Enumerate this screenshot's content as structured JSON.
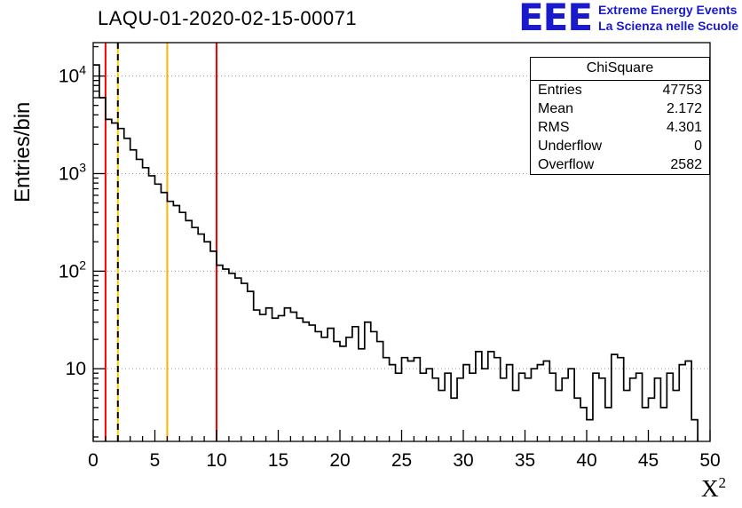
{
  "page": {
    "title": "LAQU-01-2020-02-15-00071"
  },
  "logo": {
    "mark": "EEE",
    "line1": "Extreme Energy Events",
    "line2": "La Scienza nelle Scuole",
    "color": "#1a1acd"
  },
  "axes": {
    "ylabel": "Entries/bin",
    "xlabel_base": "X",
    "xlabel_exp": "2"
  },
  "stats": {
    "title": "ChiSquare",
    "rows": [
      {
        "label": "Entries",
        "value": "47753"
      },
      {
        "label": "Mean",
        "value": "2.172"
      },
      {
        "label": "RMS",
        "value": "4.301"
      },
      {
        "label": "Underflow",
        "value": "0"
      },
      {
        "label": "Overflow",
        "value": "2582"
      }
    ]
  },
  "chart_data": {
    "type": "line",
    "style": "step-histogram",
    "title": "LAQU-01-2020-02-15-00071",
    "xlabel": "X^2",
    "ylabel": "Entries/bin",
    "xlim": [
      0,
      50
    ],
    "ylim": [
      1.8,
      22000
    ],
    "yscale": "log",
    "grid": "dotted-horizontal-decades",
    "line_color": "#000000",
    "xticks": [
      0,
      5,
      10,
      15,
      20,
      25,
      30,
      35,
      40,
      45,
      50
    ],
    "ytick_decades": [
      1,
      2,
      3,
      4
    ],
    "x_start": 0,
    "bin_width": 0.5,
    "values": [
      13000,
      6000,
      3600,
      3300,
      2900,
      2300,
      1750,
      1400,
      1150,
      950,
      780,
      640,
      520,
      470,
      400,
      330,
      280,
      240,
      200,
      160,
      115,
      105,
      95,
      85,
      75,
      62,
      40,
      36,
      42,
      33,
      35,
      42,
      38,
      33,
      30,
      28,
      24,
      21,
      26,
      19,
      17,
      21,
      27,
      16,
      30,
      24,
      19,
      13,
      11,
      9,
      13,
      12,
      13,
      9,
      10,
      8,
      6,
      9,
      5,
      8,
      11,
      9,
      15,
      10,
      15,
      13,
      8,
      11,
      6,
      9,
      8,
      10,
      11,
      12,
      9,
      6,
      8,
      10,
      5,
      4,
      3,
      9,
      8,
      4,
      14,
      13,
      6,
      8,
      9,
      4,
      5,
      8,
      4,
      9,
      6,
      11,
      12,
      3
    ],
    "vlines": [
      {
        "x": 1,
        "color": "#ff0000",
        "dash": "solid"
      },
      {
        "x": 2,
        "color": "#ffcc00",
        "dash": "dashed-black-over-yellow"
      },
      {
        "x": 6,
        "color": "#ffb300",
        "dash": "solid"
      },
      {
        "x": 10,
        "color": "#ff0000",
        "dash": "solid"
      }
    ],
    "stats_box": {
      "title": "ChiSquare",
      "entries": 47753,
      "mean": 2.172,
      "rms": 4.301,
      "underflow": 0,
      "overflow": 2582
    }
  }
}
